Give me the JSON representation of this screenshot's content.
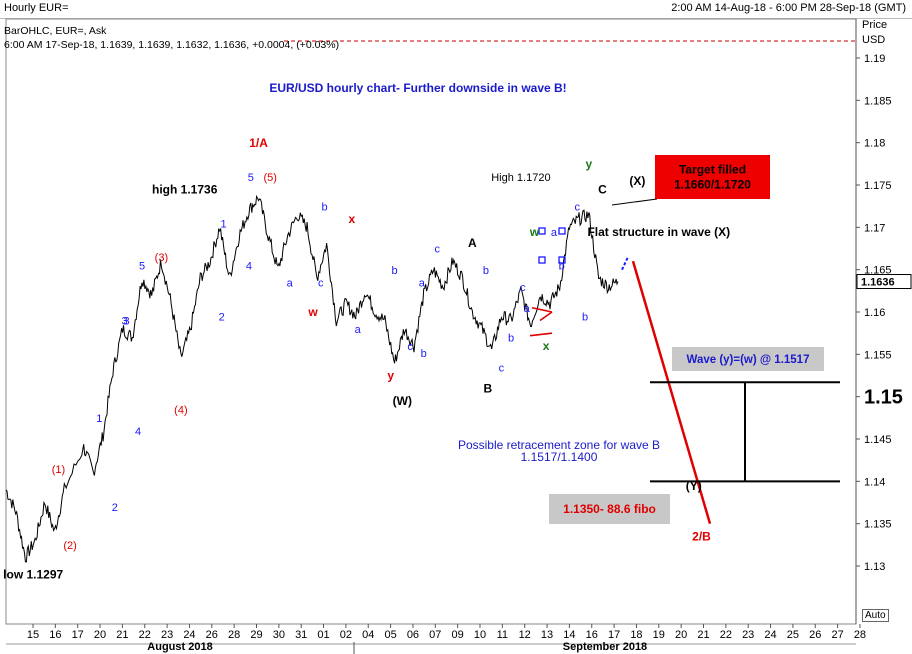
{
  "header": {
    "title": "Hourly EUR=",
    "range": "2:00 AM 14-Aug-18 - 6:00 PM 28-Sep-18 (GMT)"
  },
  "legend": {
    "line1": "BarOHLC, EUR=, Ask",
    "line2": "6:00 AM 17-Sep-18, 1.1639, 1.1639, 1.1632, 1.1636, +0.0004, (+0.03%)"
  },
  "auto_label": "Auto",
  "colors": {
    "price": "#000000",
    "forecast": "#e00000",
    "blue_label": "#1a1aff",
    "red_label": "#e00000",
    "green_label": "#1a7a1a",
    "target_box": "#ee0000",
    "gray_box": "#c8c8c8"
  },
  "chart_data": {
    "type": "line",
    "title": "EUR/USD hourly chart- Further downside in wave B!",
    "xlabel": "",
    "ylabel": "Price USD",
    "ylim": [
      1.1275,
      1.1985
    ],
    "y_ticks": [
      "1.19",
      "1.185",
      "1.18",
      "1.175",
      "1.17",
      "1.165",
      "1.16",
      "1.155",
      "1.15",
      "1.145",
      "1.14",
      "1.135",
      "1.13"
    ],
    "x_ticks": [
      "15",
      "16",
      "17",
      "20",
      "21",
      "22",
      "23",
      "24",
      "26",
      "28",
      "29",
      "30",
      "31",
      "01",
      "02",
      "04",
      "05",
      "06",
      "07",
      "09",
      "10",
      "11",
      "12",
      "13",
      "14",
      "16",
      "17",
      "18",
      "19",
      "20",
      "21",
      "22",
      "23",
      "24",
      "25",
      "26",
      "27",
      "28"
    ],
    "months": [
      "August 2018",
      "September 2018"
    ],
    "last_price": "1.1636",
    "price_path": [
      [
        15,
        1.139
      ],
      [
        15.5,
        1.1365
      ],
      [
        16,
        1.131
      ],
      [
        16.5,
        1.133
      ],
      [
        17,
        1.1375
      ],
      [
        17.5,
        1.134
      ],
      [
        18,
        1.139
      ],
      [
        19,
        1.144
      ],
      [
        19.5,
        1.141
      ],
      [
        20,
        1.1455
      ],
      [
        20.5,
        1.153
      ],
      [
        21,
        1.158
      ],
      [
        21.5,
        1.157
      ],
      [
        22,
        1.164
      ],
      [
        22.5,
        1.162
      ],
      [
        23,
        1.166
      ],
      [
        23.5,
        1.161
      ],
      [
        24,
        1.1545
      ],
      [
        24.5,
        1.158
      ],
      [
        25,
        1.164
      ],
      [
        25.5,
        1.166
      ],
      [
        26,
        1.17
      ],
      [
        26.5,
        1.164
      ],
      [
        27,
        1.169
      ],
      [
        27.5,
        1.172
      ],
      [
        28,
        1.1736
      ],
      [
        28.5,
        1.169
      ],
      [
        29,
        1.165
      ],
      [
        29.5,
        1.169
      ],
      [
        30,
        1.1715
      ],
      [
        30.5,
        1.17
      ],
      [
        31,
        1.164
      ],
      [
        31.5,
        1.168
      ],
      [
        32,
        1.159
      ],
      [
        32.5,
        1.161
      ],
      [
        33,
        1.1595
      ],
      [
        33.5,
        1.1625
      ],
      [
        34,
        1.16
      ],
      [
        34.5,
        1.159
      ],
      [
        35,
        1.154
      ],
      [
        35.5,
        1.158
      ],
      [
        36,
        1.156
      ],
      [
        36.5,
        1.162
      ],
      [
        37,
        1.165
      ],
      [
        37.5,
        1.163
      ],
      [
        38,
        1.166
      ],
      [
        38.5,
        1.164
      ],
      [
        39,
        1.16
      ],
      [
        39.5,
        1.158
      ],
      [
        40,
        1.1555
      ],
      [
        40.5,
        1.1595
      ],
      [
        41,
        1.159
      ],
      [
        41.5,
        1.1625
      ],
      [
        42,
        1.1585
      ],
      [
        42.5,
        1.162
      ],
      [
        43,
        1.161
      ],
      [
        43.5,
        1.163
      ],
      [
        44,
        1.17
      ],
      [
        44.5,
        1.171
      ],
      [
        45,
        1.1715
      ],
      [
        45.5,
        1.164
      ],
      [
        46,
        1.163
      ],
      [
        46.5,
        1.1636
      ]
    ],
    "forecast_path": [
      [
        47,
        1.166
      ],
      [
        50.8,
        1.135
      ]
    ],
    "annotations": [
      {
        "text": "1/A",
        "x": 28,
        "y": 1.1795,
        "color": "red",
        "bold": true
      },
      {
        "text": "5",
        "x": 27.6,
        "y": 1.1755,
        "color": "blue"
      },
      {
        "text": "(5)",
        "x": 28.6,
        "y": 1.1755,
        "color": "red"
      },
      {
        "text": "high 1.1736",
        "x": 24.2,
        "y": 1.174,
        "color": "black",
        "bold": true
      },
      {
        "text": "low 1.1297",
        "x": 16.4,
        "y": 1.1285,
        "color": "black",
        "bold": true
      },
      {
        "text": "1",
        "x": 26.2,
        "y": 1.17,
        "color": "blue"
      },
      {
        "text": "2",
        "x": 26.1,
        "y": 1.159,
        "color": "blue"
      },
      {
        "text": "3",
        "x": 21.2,
        "y": 1.1585,
        "color": "blue"
      },
      {
        "text": "4",
        "x": 27.5,
        "y": 1.165,
        "color": "blue"
      },
      {
        "text": "5",
        "x": 22.0,
        "y": 1.165,
        "color": "blue"
      },
      {
        "text": "(3)",
        "x": 23.0,
        "y": 1.166,
        "color": "red"
      },
      {
        "text": "(4)",
        "x": 24.0,
        "y": 1.148,
        "color": "red"
      },
      {
        "text": "(1)",
        "x": 17.7,
        "y": 1.141,
        "color": "red"
      },
      {
        "text": "(2)",
        "x": 18.3,
        "y": 1.132,
        "color": "red"
      },
      {
        "text": "1",
        "x": 19.8,
        "y": 1.147,
        "color": "blue"
      },
      {
        "text": "2",
        "x": 20.6,
        "y": 1.1365,
        "color": "blue"
      },
      {
        "text": "3",
        "x": 21.1,
        "y": 1.1585,
        "color": "blue"
      },
      {
        "text": "4",
        "x": 21.8,
        "y": 1.1455,
        "color": "blue"
      },
      {
        "text": "a",
        "x": 29.6,
        "y": 1.163,
        "color": "blue"
      },
      {
        "text": "b",
        "x": 31.4,
        "y": 1.172,
        "color": "blue"
      },
      {
        "text": "c",
        "x": 31.2,
        "y": 1.163,
        "color": "blue"
      },
      {
        "text": "w",
        "x": 30.8,
        "y": 1.1595,
        "color": "red",
        "bold": true
      },
      {
        "text": "x",
        "x": 32.8,
        "y": 1.1705,
        "color": "red",
        "bold": true
      },
      {
        "text": "a",
        "x": 33.1,
        "y": 1.1575,
        "color": "blue"
      },
      {
        "text": "b",
        "x": 35.0,
        "y": 1.1645,
        "color": "blue"
      },
      {
        "text": "a",
        "x": 36.4,
        "y": 1.163,
        "color": "blue"
      },
      {
        "text": "b",
        "x": 36.5,
        "y": 1.1547,
        "color": "blue"
      },
      {
        "text": "c",
        "x": 35.8,
        "y": 1.1555,
        "color": "blue"
      },
      {
        "text": "y",
        "x": 34.8,
        "y": 1.152,
        "color": "red",
        "bold": true
      },
      {
        "text": "(W)",
        "x": 35.4,
        "y": 1.149,
        "color": "black",
        "bold": true
      },
      {
        "text": "c",
        "x": 37.2,
        "y": 1.167,
        "color": "blue"
      },
      {
        "text": "A",
        "x": 39.0,
        "y": 1.1677,
        "color": "black",
        "bold": true
      },
      {
        "text": "b",
        "x": 39.7,
        "y": 1.1645,
        "color": "blue"
      },
      {
        "text": "B",
        "x": 39.8,
        "y": 1.1505,
        "color": "black",
        "bold": true
      },
      {
        "text": "c",
        "x": 40.5,
        "y": 1.153,
        "color": "blue"
      },
      {
        "text": "b",
        "x": 41.0,
        "y": 1.1565,
        "color": "blue"
      },
      {
        "text": "a",
        "x": 41.8,
        "y": 1.16,
        "color": "blue"
      },
      {
        "text": "c",
        "x": 41.6,
        "y": 1.1625,
        "color": "blue"
      },
      {
        "text": "w",
        "x": 42.2,
        "y": 1.169,
        "color": "green",
        "bold": true
      },
      {
        "text": "a",
        "x": 43.2,
        "y": 1.169,
        "color": "blue"
      },
      {
        "text": "b",
        "x": 43.6,
        "y": 1.165,
        "color": "blue"
      },
      {
        "text": "x",
        "x": 42.8,
        "y": 1.1555,
        "color": "green",
        "bold": true
      },
      {
        "text": "c",
        "x": 44.4,
        "y": 1.172,
        "color": "blue"
      },
      {
        "text": "y",
        "x": 45.0,
        "y": 1.177,
        "color": "green",
        "bold": true
      },
      {
        "text": "C",
        "x": 45.7,
        "y": 1.174,
        "color": "black",
        "bold": true
      },
      {
        "text": "(X)",
        "x": 47.5,
        "y": 1.175,
        "color": "black",
        "bold": true
      },
      {
        "text": "b",
        "x": 44.8,
        "y": 1.159,
        "color": "blue"
      },
      {
        "text": "High 1.1720",
        "x": 41.5,
        "y": 1.1755,
        "color": "black"
      },
      {
        "text": "Flat structure in wave (X)",
        "x": 48.6,
        "y": 1.169,
        "color": "black",
        "bold": true
      },
      {
        "text": "(Y)",
        "x": 50.4,
        "y": 1.139,
        "color": "black",
        "bold": true
      },
      {
        "text": "2/B",
        "x": 50.8,
        "y": 1.133,
        "color": "red",
        "bold": true
      }
    ],
    "boxes": [
      {
        "lines": [
          "Target filled",
          "1.1660/1.1720"
        ],
        "style": "red"
      },
      {
        "lines": [
          "Wave (y)=(w) @ 1.1517"
        ],
        "style": "gray"
      },
      {
        "lines": [
          "1.1350- 88.6 fibo"
        ],
        "style": "gray"
      },
      {
        "lines": [
          "Possible retracement zone for wave B",
          "1.1517/1.1400"
        ],
        "style": "plain"
      }
    ],
    "levels": [
      1.1517,
      1.14
    ]
  }
}
